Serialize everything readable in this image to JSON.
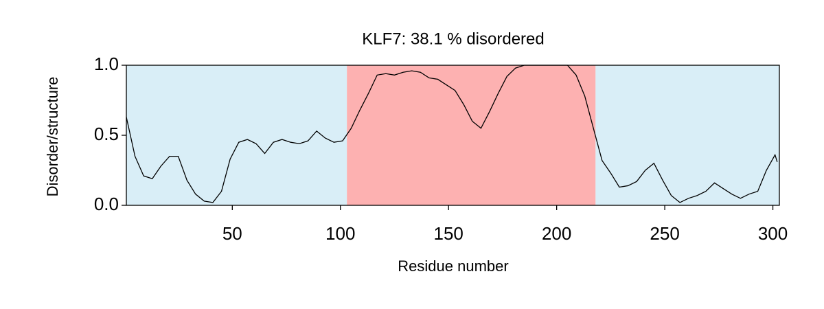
{
  "chart_data": {
    "type": "line",
    "title": "KLF7: 38.1 % disordered",
    "x_label": "Residue number",
    "y_label": "Disorder/structure",
    "x": [
      1,
      5,
      9,
      13,
      17,
      21,
      25,
      29,
      33,
      37,
      41,
      45,
      49,
      53,
      57,
      61,
      65,
      69,
      73,
      77,
      81,
      85,
      89,
      93,
      97,
      101,
      105,
      109,
      113,
      117,
      121,
      125,
      129,
      133,
      137,
      141,
      145,
      149,
      153,
      157,
      161,
      165,
      169,
      173,
      177,
      181,
      185,
      189,
      193,
      197,
      201,
      205,
      209,
      213,
      217,
      221,
      225,
      229,
      233,
      237,
      241,
      245,
      249,
      253,
      257,
      261,
      265,
      269,
      273,
      277,
      281,
      285,
      289,
      293,
      297,
      301,
      302
    ],
    "series": [
      {
        "color": "#000000",
        "values": [
          0.63,
          0.35,
          0.21,
          0.19,
          0.28,
          0.35,
          0.35,
          0.18,
          0.08,
          0.03,
          0.02,
          0.1,
          0.33,
          0.45,
          0.47,
          0.44,
          0.37,
          0.45,
          0.47,
          0.45,
          0.44,
          0.46,
          0.53,
          0.48,
          0.45,
          0.46,
          0.55,
          0.68,
          0.8,
          0.93,
          0.94,
          0.93,
          0.95,
          0.96,
          0.95,
          0.91,
          0.9,
          0.86,
          0.82,
          0.72,
          0.6,
          0.55,
          0.67,
          0.8,
          0.92,
          0.98,
          1,
          1,
          1,
          1,
          1,
          1,
          0.93,
          0.78,
          0.55,
          0.32,
          0.23,
          0.13,
          0.14,
          0.17,
          0.25,
          0.3,
          0.18,
          0.07,
          0.02,
          0.05,
          0.07,
          0.1,
          0.16,
          0.12,
          0.08,
          0.05,
          0.08,
          0.1,
          0.25,
          0.36,
          0.31
        ]
      }
    ],
    "regions": [
      {
        "start": 1,
        "end": 103,
        "color": "#d9eef7"
      },
      {
        "start": 103,
        "end": 218,
        "color": "#fdb1b1"
      },
      {
        "start": 218,
        "end": 303,
        "color": "#d9eef7"
      }
    ],
    "xlim": [
      1,
      303
    ],
    "ylim": [
      0,
      1
    ],
    "xticks": [
      50,
      100,
      150,
      200,
      250,
      300
    ],
    "yticks": [
      {
        "value": 0,
        "label": "0.0"
      },
      {
        "value": 0.5,
        "label": "0.5"
      },
      {
        "value": 1,
        "label": "1.0"
      }
    ]
  }
}
